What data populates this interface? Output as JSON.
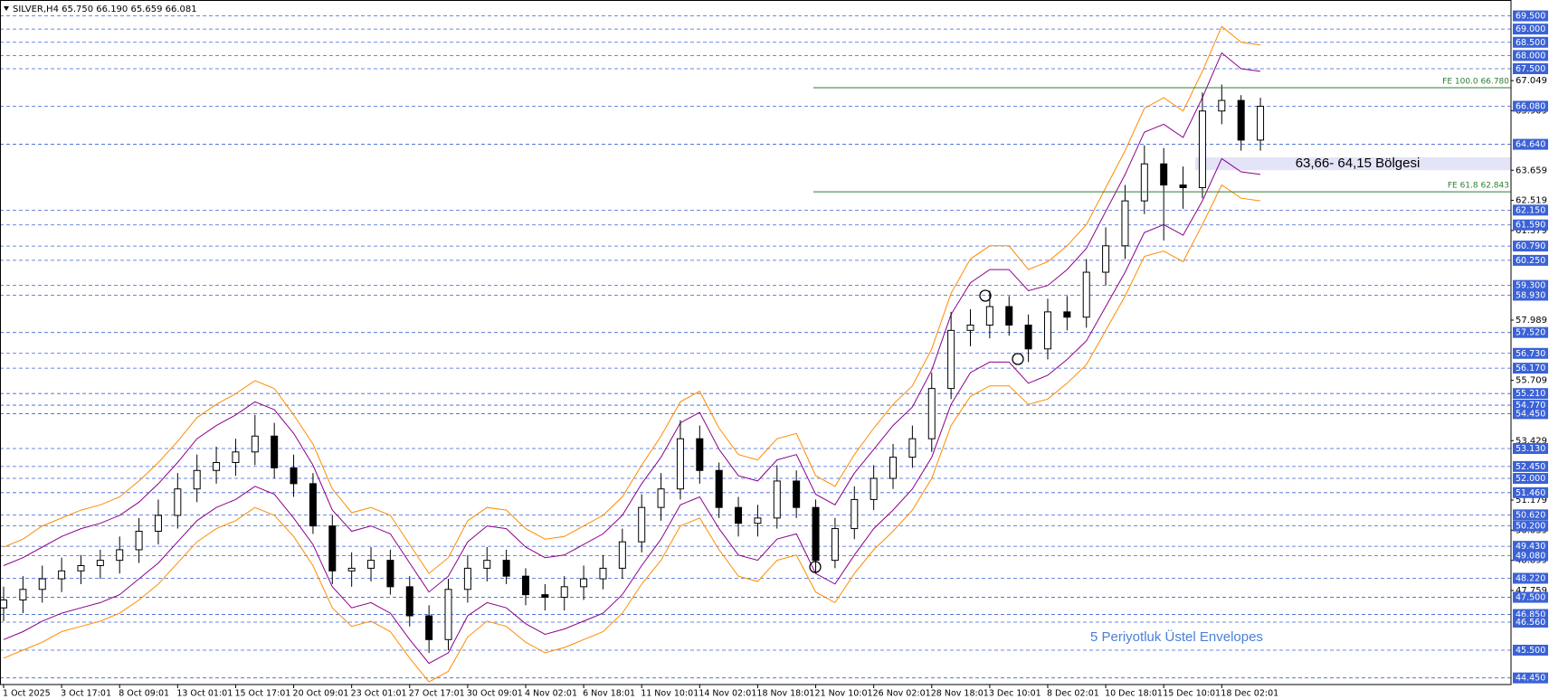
{
  "chart_data": {
    "type": "candlestick",
    "title": "SILVER,H4  65.750 66.190 65.659 66.081",
    "categories": [
      "1 Oct 2025",
      null,
      null,
      "3 Oct 17:01",
      null,
      null,
      "8 Oct 09:01",
      null,
      null,
      "13 Oct 01:01",
      null,
      null,
      "15 Oct 17:01",
      null,
      null,
      "20 Oct 09:01",
      null,
      null,
      "23 Oct 01:01",
      null,
      null,
      "27 Oct 17:01",
      null,
      null,
      "30 Oct 09:01",
      null,
      null,
      "4 Nov 02:01",
      null,
      null,
      "6 Nov 18:01",
      null,
      null,
      "11 Nov 10:01",
      null,
      null,
      "14 Nov 02:01",
      null,
      null,
      "18 Nov 18:01",
      null,
      null,
      "21 Nov 10:01",
      null,
      null,
      "26 Nov 02:01",
      null,
      null,
      "28 Nov 18:01",
      null,
      null,
      "3 Dec 10:01",
      null,
      null,
      "8 Dec 02:01",
      null,
      null,
      "10 Dec 18:01",
      null,
      null,
      "15 Dec 10:01",
      null,
      null,
      "18 Dec 02:01",
      null,
      null
    ],
    "open": [
      47.1,
      47.4,
      47.8,
      48.2,
      48.5,
      48.7,
      48.9,
      49.3,
      50.0,
      50.6,
      51.6,
      52.3,
      52.6,
      53.0,
      53.6,
      52.4,
      51.8,
      50.2,
      48.5,
      48.6,
      48.9,
      47.9,
      46.8,
      45.9,
      47.8,
      48.6,
      48.9,
      48.3,
      47.6,
      47.5,
      47.9,
      48.2,
      48.6,
      49.6,
      50.9,
      51.6,
      53.5,
      52.3,
      50.9,
      50.3,
      50.5,
      51.9,
      50.9,
      48.9,
      50.1,
      51.2,
      52.0,
      52.8,
      53.5,
      55.4,
      57.6,
      57.8,
      58.5,
      57.8,
      56.9,
      58.3,
      58.1,
      59.8,
      60.8,
      62.5,
      63.9,
      63.1,
      63.0,
      65.9,
      66.3,
      64.8
    ],
    "high": [
      47.9,
      48.3,
      48.7,
      49.0,
      49.1,
      49.3,
      49.8,
      50.5,
      51.2,
      52.2,
      52.9,
      53.2,
      53.5,
      54.4,
      54.1,
      52.9,
      52.2,
      50.6,
      49.2,
      49.4,
      49.3,
      48.3,
      47.2,
      48.2,
      49.1,
      49.4,
      49.3,
      48.6,
      48.0,
      48.3,
      48.7,
      49.1,
      50.1,
      51.4,
      52.2,
      54.2,
      54.0,
      52.6,
      51.3,
      51.0,
      52.5,
      52.3,
      51.2,
      50.5,
      51.7,
      52.5,
      53.3,
      54.0,
      56.0,
      58.3,
      58.4,
      59.1,
      58.9,
      58.2,
      58.8,
      58.9,
      60.3,
      61.5,
      63.1,
      64.6,
      64.5,
      63.8,
      66.6,
      66.9,
      66.5,
      66.4
    ],
    "low": [
      46.6,
      46.9,
      47.3,
      47.7,
      48.0,
      48.2,
      48.4,
      48.8,
      49.5,
      50.1,
      51.1,
      51.8,
      52.1,
      52.5,
      52.0,
      51.3,
      49.9,
      48.0,
      47.9,
      48.1,
      47.6,
      46.4,
      45.4,
      45.5,
      47.3,
      48.1,
      48.0,
      47.2,
      47.0,
      47.0,
      47.4,
      47.8,
      48.2,
      49.2,
      50.4,
      51.2,
      51.8,
      50.5,
      49.8,
      49.8,
      50.1,
      50.5,
      48.4,
      48.6,
      49.7,
      50.8,
      51.6,
      52.4,
      53.0,
      55.0,
      57.0,
      57.3,
      57.4,
      56.4,
      56.5,
      57.6,
      57.7,
      59.3,
      60.3,
      62.0,
      61.0,
      62.2,
      62.6,
      65.4,
      64.4,
      64.4
    ],
    "close": [
      47.4,
      47.8,
      48.2,
      48.5,
      48.7,
      48.9,
      49.3,
      50.0,
      50.6,
      51.6,
      52.3,
      52.6,
      53.0,
      53.6,
      52.4,
      51.8,
      50.2,
      48.5,
      48.6,
      48.9,
      47.9,
      46.8,
      45.9,
      47.8,
      48.6,
      48.9,
      48.3,
      47.6,
      47.5,
      47.9,
      48.2,
      48.6,
      49.6,
      50.9,
      51.6,
      53.5,
      52.3,
      50.9,
      50.3,
      50.5,
      51.9,
      50.9,
      48.9,
      50.1,
      51.2,
      52.0,
      52.8,
      53.5,
      55.4,
      57.6,
      57.8,
      58.5,
      57.8,
      56.9,
      58.3,
      58.1,
      59.8,
      60.8,
      62.5,
      63.9,
      63.1,
      63.0,
      65.9,
      66.3,
      64.8,
      66.08
    ],
    "color": "#000000",
    "series": [
      {
        "color": "#ff8c00",
        "values": [
          49.4,
          49.7,
          50.2,
          50.5,
          50.8,
          51.0,
          51.3,
          51.9,
          52.6,
          53.4,
          54.3,
          54.8,
          55.2,
          55.7,
          55.4,
          54.4,
          53.3,
          51.6,
          50.7,
          50.9,
          50.6,
          49.5,
          48.4,
          49.0,
          50.4,
          50.9,
          50.8,
          50.1,
          49.7,
          49.8,
          50.2,
          50.6,
          51.3,
          52.5,
          53.6,
          54.9,
          55.3,
          53.9,
          52.9,
          52.7,
          53.5,
          53.7,
          52.1,
          51.7,
          52.9,
          53.9,
          54.8,
          55.5,
          56.9,
          59.0,
          60.3,
          60.8,
          60.8,
          59.9,
          60.2,
          60.8,
          61.6,
          63.0,
          64.4,
          66.0,
          66.4,
          65.9,
          67.4,
          69.1,
          68.5,
          68.4
        ]
      },
      {
        "color": "#8b008b",
        "values": [
          48.7,
          49.0,
          49.4,
          49.8,
          50.1,
          50.3,
          50.6,
          51.1,
          51.8,
          52.6,
          53.5,
          54.0,
          54.4,
          54.9,
          54.6,
          53.7,
          52.5,
          50.8,
          50.0,
          50.2,
          49.9,
          48.8,
          47.7,
          48.3,
          49.6,
          50.2,
          50.1,
          49.4,
          49.0,
          49.1,
          49.5,
          49.9,
          50.6,
          51.8,
          52.8,
          54.1,
          54.5,
          53.1,
          52.1,
          51.9,
          52.7,
          52.9,
          51.4,
          51.0,
          52.2,
          53.1,
          54.0,
          54.7,
          56.1,
          58.2,
          59.4,
          59.9,
          59.9,
          59.1,
          59.3,
          59.9,
          60.7,
          62.1,
          63.5,
          65.1,
          65.4,
          64.9,
          66.4,
          68.1,
          67.5,
          67.4
        ]
      },
      {
        "color": "#8b008b",
        "values": [
          45.9,
          46.2,
          46.6,
          46.9,
          47.1,
          47.3,
          47.6,
          48.2,
          48.8,
          49.6,
          50.4,
          50.9,
          51.2,
          51.7,
          51.4,
          50.5,
          49.5,
          47.9,
          47.1,
          47.3,
          46.9,
          45.9,
          45.0,
          45.4,
          46.8,
          47.3,
          47.1,
          46.5,
          46.1,
          46.3,
          46.6,
          46.9,
          47.6,
          48.7,
          49.7,
          51.0,
          51.3,
          50.1,
          49.1,
          48.9,
          49.7,
          49.9,
          48.4,
          48.0,
          49.1,
          50.1,
          50.8,
          51.6,
          52.8,
          54.8,
          56.0,
          56.4,
          56.4,
          55.6,
          55.9,
          56.5,
          57.2,
          58.5,
          59.8,
          61.3,
          61.6,
          61.2,
          62.5,
          64.1,
          63.6,
          63.5
        ]
      },
      {
        "color": "#ff8c00",
        "values": [
          45.2,
          45.5,
          45.8,
          46.2,
          46.4,
          46.6,
          46.9,
          47.4,
          48.0,
          48.8,
          49.6,
          50.1,
          50.4,
          50.9,
          50.6,
          49.8,
          48.7,
          47.1,
          46.4,
          46.6,
          46.2,
          45.2,
          44.3,
          44.7,
          46.0,
          46.6,
          46.4,
          45.8,
          45.4,
          45.6,
          45.9,
          46.2,
          46.9,
          48.0,
          48.9,
          50.2,
          50.5,
          49.3,
          48.3,
          48.1,
          48.9,
          49.1,
          47.7,
          47.3,
          48.4,
          49.3,
          50.0,
          50.8,
          52.0,
          54.0,
          55.1,
          55.5,
          55.5,
          54.8,
          55.0,
          55.6,
          56.3,
          57.6,
          58.9,
          60.4,
          60.6,
          60.2,
          61.6,
          63.1,
          62.6,
          62.5
        ]
      }
    ],
    "ylim": [
      44.2,
      70.1
    ],
    "yticks": [
      67.049,
      65.909,
      63.659,
      62.519,
      61.379,
      57.989,
      55.709,
      53.429,
      51.179,
      50.039,
      48.899,
      47.759
    ],
    "levels_color": "#3b62d6",
    "levels": [
      {
        "value": 69.5,
        "label": "69.500"
      },
      {
        "value": 69.0,
        "label": "69.000"
      },
      {
        "value": 68.5,
        "label": "68.500"
      },
      {
        "value": 68.0,
        "label": "68.000"
      },
      {
        "value": 67.5,
        "label": "67.500"
      },
      {
        "value": 66.08,
        "label": "66.080"
      },
      {
        "value": 64.64,
        "label": "64.640"
      },
      {
        "value": 62.15,
        "label": "62.150"
      },
      {
        "value": 61.59,
        "label": "61.590"
      },
      {
        "value": 60.79,
        "label": "60.790"
      },
      {
        "value": 60.25,
        "label": "60.250"
      },
      {
        "value": 59.3,
        "label": "59.300"
      },
      {
        "value": 58.93,
        "label": "58.930"
      },
      {
        "value": 57.52,
        "label": "57.520"
      },
      {
        "value": 56.73,
        "label": "56.730"
      },
      {
        "value": 56.17,
        "label": "56.170"
      },
      {
        "value": 55.21,
        "label": "55.210"
      },
      {
        "value": 54.77,
        "label": "54.770"
      },
      {
        "value": 54.45,
        "label": "54.450"
      },
      {
        "value": 53.13,
        "label": "53.130"
      },
      {
        "value": 52.45,
        "label": "52.450"
      },
      {
        "value": 52.0,
        "label": "52.000"
      },
      {
        "value": 51.46,
        "label": "51.460"
      },
      {
        "value": 50.62,
        "label": "50.620"
      },
      {
        "value": 50.2,
        "label": "50.200"
      },
      {
        "value": 49.43,
        "label": "49.430"
      },
      {
        "value": 49.08,
        "label": "49.080"
      },
      {
        "value": 48.22,
        "label": "48.220"
      },
      {
        "value": 47.5,
        "label": "47.500"
      },
      {
        "value": 46.85,
        "label": "46.850"
      },
      {
        "value": 46.56,
        "label": "46.560"
      },
      {
        "value": 45.5,
        "label": "45.500"
      },
      {
        "value": 44.45,
        "label": "44.450"
      }
    ],
    "fe_color": "#2e7d32",
    "fe_lines": [
      {
        "value": 66.78,
        "label": "FE 100.0 66.780"
      },
      {
        "value": 62.843,
        "label": "FE 61.8 62.843"
      }
    ],
    "zone": {
      "from": 63.66,
      "to": 64.15,
      "label": "63,66- 64,15 Bölgesi",
      "color": "#e4e4f8"
    },
    "annotation": "5 Periyotluk Üstel Envelopes"
  }
}
